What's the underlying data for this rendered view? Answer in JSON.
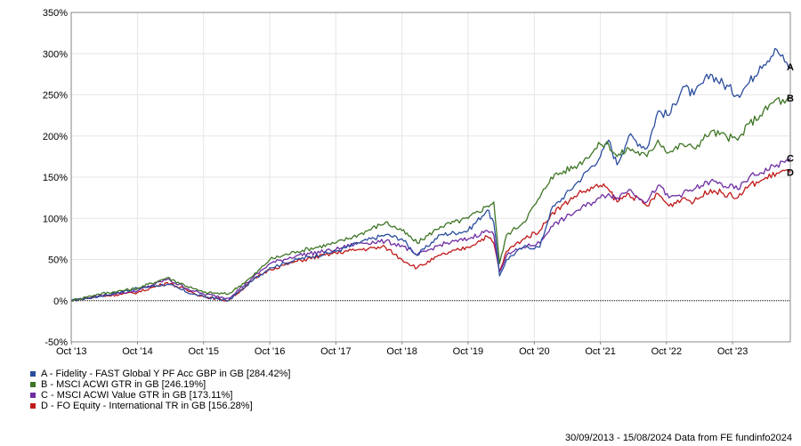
{
  "chart_data": {
    "type": "line",
    "xlabel": "",
    "ylabel": "",
    "ylim": [
      -50,
      350
    ],
    "y_ticks": [
      -50,
      0,
      50,
      100,
      150,
      200,
      250,
      300,
      350
    ],
    "y_tick_labels": [
      "-50%",
      "0%",
      "50%",
      "100%",
      "150%",
      "200%",
      "250%",
      "300%",
      "350%"
    ],
    "x_ticks": [
      {
        "date": "2013-10-01",
        "label": "Oct '13"
      },
      {
        "date": "2014-10-01",
        "label": "Oct '14"
      },
      {
        "date": "2015-10-01",
        "label": "Oct '15"
      },
      {
        "date": "2016-10-01",
        "label": "Oct '16"
      },
      {
        "date": "2017-10-01",
        "label": "Oct '17"
      },
      {
        "date": "2018-10-01",
        "label": "Oct '18"
      },
      {
        "date": "2019-10-01",
        "label": "Oct '19"
      },
      {
        "date": "2020-10-01",
        "label": "Oct '20"
      },
      {
        "date": "2021-10-01",
        "label": "Oct '21"
      },
      {
        "date": "2022-10-01",
        "label": "Oct '22"
      },
      {
        "date": "2023-10-01",
        "label": "Oct '23"
      }
    ],
    "xlim": [
      "2013-09-30",
      "2024-08-15"
    ],
    "grid": true,
    "legend_position": "bottom-left",
    "dates": [
      "2013-09-30",
      "2014-03-01",
      "2014-10-01",
      "2015-03-15",
      "2015-08-01",
      "2015-10-01",
      "2016-02-15",
      "2016-07-01",
      "2016-10-01",
      "2017-03-01",
      "2017-10-01",
      "2018-02-01",
      "2018-07-01",
      "2018-10-01",
      "2018-12-24",
      "2019-05-01",
      "2019-10-01",
      "2020-01-15",
      "2020-02-20",
      "2020-03-23",
      "2020-05-01",
      "2020-08-01",
      "2020-10-31",
      "2021-01-01",
      "2021-06-01",
      "2021-10-01",
      "2021-11-15",
      "2022-01-01",
      "2022-03-07",
      "2022-06-15",
      "2022-08-15",
      "2022-10-15",
      "2022-12-31",
      "2023-03-01",
      "2023-06-01",
      "2023-10-30",
      "2024-01-01",
      "2024-03-01",
      "2024-06-01",
      "2024-07-15",
      "2024-08-15"
    ],
    "series": [
      {
        "name": "A - Fidelity - FAST Global Y PF Acc GBP in GB [284.42%]",
        "end_label": "A",
        "color": "#2b4d9e",
        "values": [
          0,
          5,
          15,
          20,
          8,
          5,
          0,
          25,
          40,
          50,
          60,
          70,
          80,
          75,
          55,
          80,
          85,
          110,
          95,
          30,
          50,
          65,
          65,
          110,
          145,
          175,
          195,
          165,
          200,
          185,
          230,
          225,
          260,
          250,
          275,
          250,
          265,
          285,
          305,
          290,
          284
        ]
      },
      {
        "name": "B - MSCI ACWI GTR in GB [246.19%]",
        "end_label": "B",
        "color": "#3e7525",
        "values": [
          0,
          8,
          15,
          28,
          15,
          10,
          8,
          30,
          50,
          60,
          70,
          80,
          95,
          85,
          70,
          90,
          100,
          115,
          120,
          45,
          80,
          95,
          125,
          150,
          165,
          190,
          190,
          175,
          185,
          175,
          195,
          180,
          190,
          185,
          205,
          195,
          215,
          225,
          245,
          240,
          246
        ]
      },
      {
        "name": "C - MSCI ACWI Value GTR in GB [173.11%]",
        "end_label": "C",
        "color": "#6e2da3",
        "values": [
          0,
          6,
          12,
          26,
          12,
          8,
          3,
          28,
          45,
          55,
          62,
          70,
          72,
          67,
          55,
          68,
          75,
          85,
          80,
          35,
          55,
          65,
          70,
          90,
          110,
          125,
          130,
          125,
          135,
          120,
          140,
          125,
          130,
          135,
          145,
          135,
          150,
          155,
          165,
          168,
          173
        ]
      },
      {
        "name": "D - FO Equity - International TR in GB [156.28%]",
        "end_label": "D",
        "color": "#c01818",
        "values": [
          0,
          5,
          10,
          22,
          10,
          5,
          0,
          25,
          38,
          48,
          58,
          62,
          65,
          50,
          40,
          55,
          65,
          78,
          70,
          35,
          60,
          75,
          85,
          105,
          130,
          140,
          135,
          120,
          130,
          115,
          130,
          115,
          125,
          120,
          135,
          125,
          140,
          145,
          155,
          158,
          156
        ]
      }
    ],
    "footer": "30/09/2013 - 15/08/2024 Data from FE fundinfo2024"
  }
}
